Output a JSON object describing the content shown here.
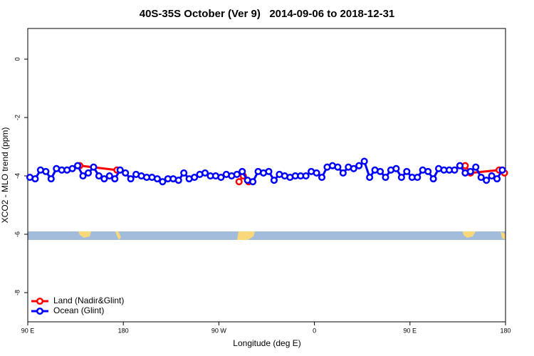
{
  "chart_data": {
    "type": "line",
    "title": "40S-35S October (Ver 9)   2014-09-06 to 2018-12-31",
    "xlabel": "Longitude (deg E)",
    "ylabel": "XCO2 - MLO trend (ppm)",
    "xlim": [
      90,
      540
    ],
    "ylim": [
      -9,
      1.05
    ],
    "xticks": [
      {
        "value": 90,
        "label": "90 E"
      },
      180,
      {
        "value": 270,
        "label": "90 W"
      },
      {
        "value": 360,
        "label": "0"
      },
      {
        "value": 450,
        "label": "90 E"
      },
      {
        "value": 540,
        "label": "180"
      }
    ],
    "yticks": [
      0,
      -2,
      -4,
      -6,
      -8
    ],
    "legend": "bottom-left",
    "series": [
      {
        "name": "Land (Nadir&Glint)",
        "color": "#ff0000",
        "x": [
          139,
          174,
          289,
          293,
          298,
          502,
          507,
          534,
          539
        ],
        "values": [
          -3.65,
          -3.8,
          -4.2,
          -4.0,
          -4.2,
          -3.65,
          -3.9,
          -3.8,
          -3.9
        ]
      },
      {
        "name": "Ocean (Glint)",
        "color": "#0000ff",
        "x": [
          92,
          97,
          102,
          107,
          112,
          117,
          122,
          127,
          132,
          137,
          142,
          147,
          152,
          157,
          162,
          167,
          172,
          177,
          182,
          187,
          192,
          197,
          202,
          207,
          212,
          217,
          222,
          227,
          232,
          237,
          242,
          247,
          252,
          257,
          262,
          267,
          272,
          277,
          282,
          287,
          292,
          297,
          302,
          307,
          312,
          317,
          322,
          327,
          332,
          337,
          342,
          347,
          352,
          357,
          362,
          367,
          372,
          377,
          382,
          387,
          392,
          397,
          402,
          407,
          412,
          417,
          422,
          427,
          432,
          437,
          442,
          447,
          452,
          457,
          462,
          467,
          472,
          477,
          482,
          487,
          492,
          497,
          502,
          507,
          512,
          517,
          522,
          527,
          532,
          537
        ],
        "values": [
          -4.05,
          -4.1,
          -3.8,
          -3.85,
          -4.1,
          -3.75,
          -3.8,
          -3.8,
          -3.75,
          -3.65,
          -4.0,
          -3.9,
          -3.7,
          -4.0,
          -4.1,
          -4.0,
          -4.1,
          -3.8,
          -3.9,
          -4.1,
          -3.95,
          -4.0,
          -4.05,
          -4.05,
          -4.1,
          -4.2,
          -4.1,
          -4.1,
          -4.15,
          -3.9,
          -4.1,
          -4.05,
          -3.95,
          -3.9,
          -4.0,
          -4.0,
          -4.05,
          -3.95,
          -4.0,
          -3.95,
          -3.85,
          -4.15,
          -4.2,
          -3.85,
          -3.9,
          -3.85,
          -4.15,
          -3.95,
          -4.0,
          -4.05,
          -4.0,
          -4.0,
          -4.0,
          -3.85,
          -3.9,
          -4.05,
          -3.7,
          -3.65,
          -3.7,
          -3.9,
          -3.7,
          -3.75,
          -3.65,
          -3.5,
          -4.05,
          -3.8,
          -3.85,
          -4.05,
          -3.8,
          -3.75,
          -4.05,
          -3.85,
          -4.05,
          -4.05,
          -3.8,
          -3.85,
          -4.1,
          -3.75,
          -3.8,
          -3.8,
          -3.8,
          -3.65,
          -3.9,
          -3.85,
          -3.7,
          -4.05,
          -4.15,
          -4.0,
          -4.1,
          -3.8
        ]
      }
    ]
  }
}
